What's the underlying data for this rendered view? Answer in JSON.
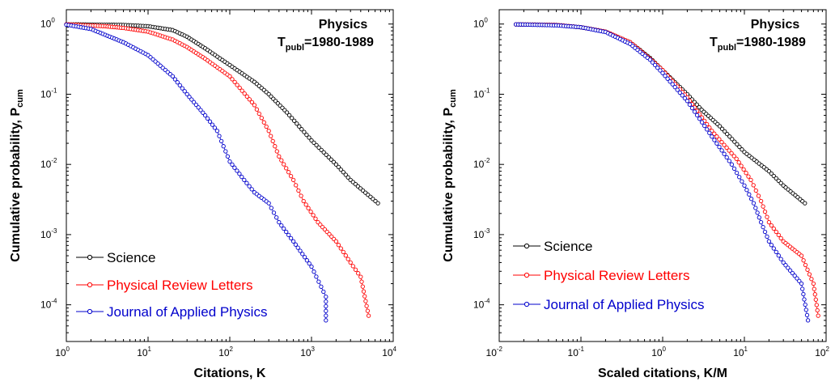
{
  "chart_data": [
    {
      "type": "scatter",
      "x_scale": "log",
      "y_scale": "log",
      "xlim": [
        1,
        10000
      ],
      "ylim": [
        3e-05,
        1.6
      ],
      "x_ticks": [
        {
          "base": "10",
          "exp": "0"
        },
        {
          "base": "10",
          "exp": "1"
        },
        {
          "base": "10",
          "exp": "2"
        },
        {
          "base": "10",
          "exp": "3"
        },
        {
          "base": "10",
          "exp": "4"
        }
      ],
      "y_ticks": [
        {
          "base": "10",
          "exp": "0"
        },
        {
          "base": "10",
          "exp": "-1"
        },
        {
          "base": "10",
          "exp": "-2"
        },
        {
          "base": "10",
          "exp": "-3"
        },
        {
          "base": "10",
          "exp": "-4"
        }
      ],
      "xlabel": "Citations, K",
      "ylabel": {
        "main": "Cumulative probability,  P",
        "sub": "cum"
      },
      "annotation": {
        "line1": "Physics",
        "symbol": "T",
        "sub": "publ",
        "rest": "=1980-1989"
      },
      "legend_position": "bottom-left",
      "series": [
        {
          "name": "Science",
          "color": "#000000",
          "anchors": [
            [
              1,
              0.99
            ],
            [
              5,
              0.97
            ],
            [
              10,
              0.93
            ],
            [
              20,
              0.82
            ],
            [
              30,
              0.66
            ],
            [
              50,
              0.45
            ],
            [
              100,
              0.26
            ],
            [
              200,
              0.15
            ],
            [
              300,
              0.1
            ],
            [
              500,
              0.055
            ],
            [
              1000,
              0.022
            ],
            [
              2000,
              0.01
            ],
            [
              3000,
              0.006
            ],
            [
              6500,
              0.0028
            ]
          ]
        },
        {
          "name": "Physical Review Letters",
          "color": "#ff0000",
          "anchors": [
            [
              1,
              0.99
            ],
            [
              3,
              0.93
            ],
            [
              5,
              0.88
            ],
            [
              10,
              0.78
            ],
            [
              20,
              0.6
            ],
            [
              30,
              0.47
            ],
            [
              50,
              0.32
            ],
            [
              100,
              0.18
            ],
            [
              200,
              0.07
            ],
            [
              300,
              0.03
            ],
            [
              400,
              0.013
            ],
            [
              600,
              0.006
            ],
            [
              800,
              0.003
            ],
            [
              1200,
              0.0015
            ],
            [
              2000,
              0.0008
            ],
            [
              3000,
              0.0004
            ],
            [
              4000,
              0.00025
            ],
            [
              5000,
              7e-05
            ]
          ]
        },
        {
          "name": "Journal of Applied Physics",
          "color": "#0000cc",
          "anchors": [
            [
              1,
              0.98
            ],
            [
              2,
              0.85
            ],
            [
              3,
              0.7
            ],
            [
              5,
              0.55
            ],
            [
              10,
              0.36
            ],
            [
              20,
              0.18
            ],
            [
              30,
              0.1
            ],
            [
              50,
              0.05
            ],
            [
              70,
              0.03
            ],
            [
              100,
              0.011
            ],
            [
              150,
              0.006
            ],
            [
              200,
              0.004
            ],
            [
              300,
              0.0028
            ],
            [
              400,
              0.0015
            ],
            [
              600,
              0.0008
            ],
            [
              1000,
              0.00035
            ],
            [
              1500,
              0.00013
            ],
            [
              1500,
              6e-05
            ]
          ]
        }
      ]
    },
    {
      "type": "scatter",
      "x_scale": "log",
      "y_scale": "log",
      "xlim": [
        0.01,
        100
      ],
      "ylim": [
        3e-05,
        1.6
      ],
      "x_ticks": [
        {
          "base": "10",
          "exp": "-2"
        },
        {
          "base": "10",
          "exp": "-1"
        },
        {
          "base": "10",
          "exp": "0"
        },
        {
          "base": "10",
          "exp": "1"
        },
        {
          "base": "10",
          "exp": "2"
        }
      ],
      "y_ticks": [
        {
          "base": "10",
          "exp": "0"
        },
        {
          "base": "10",
          "exp": "-1"
        },
        {
          "base": "10",
          "exp": "-2"
        },
        {
          "base": "10",
          "exp": "-3"
        },
        {
          "base": "10",
          "exp": "-4"
        }
      ],
      "xlabel": "Scaled citations, K/M",
      "ylabel": {
        "main": "Cumulative probability,  P",
        "sub": "cum"
      },
      "annotation": {
        "line1": "Physics",
        "symbol": "T",
        "sub": "publ",
        "rest": "=1980-1989"
      },
      "legend_position": "bottom-left",
      "series": [
        {
          "name": "Science",
          "color": "#000000",
          "anchors": [
            [
              0.016,
              0.99
            ],
            [
              0.05,
              0.97
            ],
            [
              0.1,
              0.9
            ],
            [
              0.2,
              0.78
            ],
            [
              0.4,
              0.55
            ],
            [
              0.7,
              0.33
            ],
            [
              1,
              0.22
            ],
            [
              2,
              0.1
            ],
            [
              3,
              0.06
            ],
            [
              5,
              0.035
            ],
            [
              10,
              0.015
            ],
            [
              20,
              0.008
            ],
            [
              30,
              0.005
            ],
            [
              55,
              0.0028
            ]
          ]
        },
        {
          "name": "Physical Review Letters",
          "color": "#ff0000",
          "anchors": [
            [
              0.016,
              0.99
            ],
            [
              0.05,
              0.97
            ],
            [
              0.1,
              0.9
            ],
            [
              0.2,
              0.78
            ],
            [
              0.4,
              0.55
            ],
            [
              0.7,
              0.32
            ],
            [
              1,
              0.22
            ],
            [
              2,
              0.09
            ],
            [
              4,
              0.03
            ],
            [
              8,
              0.012
            ],
            [
              12,
              0.006
            ],
            [
              16,
              0.003
            ],
            [
              20,
              0.0015
            ],
            [
              30,
              0.0008
            ],
            [
              50,
              0.0005
            ],
            [
              70,
              0.0002
            ],
            [
              80,
              7e-05
            ]
          ]
        },
        {
          "name": "Journal of Applied Physics",
          "color": "#0000cc",
          "anchors": [
            [
              0.016,
              0.99
            ],
            [
              0.05,
              0.96
            ],
            [
              0.1,
              0.9
            ],
            [
              0.2,
              0.77
            ],
            [
              0.4,
              0.52
            ],
            [
              0.7,
              0.31
            ],
            [
              1,
              0.2
            ],
            [
              2,
              0.08
            ],
            [
              4,
              0.025
            ],
            [
              7,
              0.01
            ],
            [
              10,
              0.005
            ],
            [
              13,
              0.0028
            ],
            [
              16,
              0.0015
            ],
            [
              20,
              0.0008
            ],
            [
              30,
              0.0004
            ],
            [
              50,
              0.0002
            ],
            [
              60,
              6e-05
            ]
          ]
        }
      ]
    }
  ]
}
